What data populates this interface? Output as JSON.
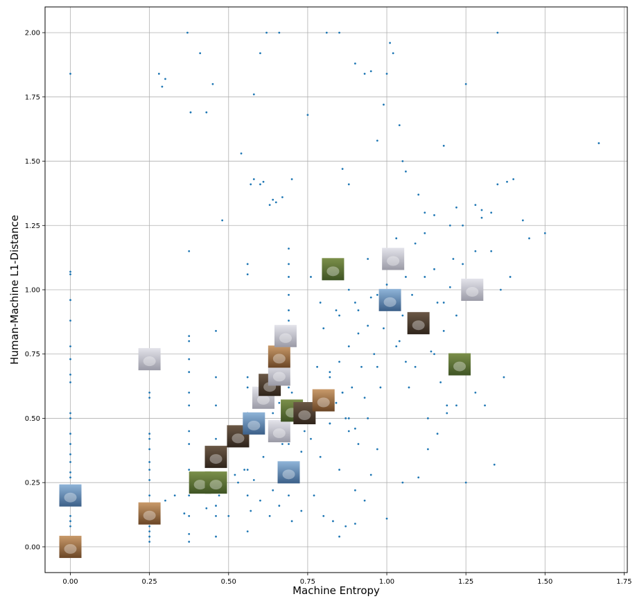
{
  "chart_data": {
    "type": "scatter",
    "title": "",
    "xlabel": "Machine Entropy",
    "ylabel": "Human-Machine L1-Distance",
    "xlim": [
      -0.08,
      1.76
    ],
    "ylim": [
      -0.1,
      2.1
    ],
    "grid": true,
    "point_color": "#1f77b4",
    "x_ticks": [
      0.0,
      0.25,
      0.5,
      0.75,
      1.0,
      1.25,
      1.5,
      1.75
    ],
    "x_tick_labels": [
      "0.00",
      "0.25",
      "0.50",
      "0.75",
      "1.00",
      "1.25",
      "1.50",
      "1.75"
    ],
    "y_ticks": [
      0.0,
      0.25,
      0.5,
      0.75,
      1.0,
      1.25,
      1.5,
      1.75,
      2.0
    ],
    "y_tick_labels": [
      "0.00",
      "0.25",
      "0.50",
      "0.75",
      "1.00",
      "1.25",
      "1.50",
      "1.75",
      "2.00"
    ],
    "sampled_points": {
      "x": [
        0.0,
        0.0,
        0.0,
        0.0,
        0.0,
        0.0,
        0.0,
        0.0,
        0.0,
        0.0,
        0.0,
        0.0,
        0.0,
        0.0,
        0.0,
        0.0,
        0.0,
        0.0,
        0.0,
        0.0,
        0.25,
        0.25,
        0.25,
        0.25,
        0.25,
        0.25,
        0.25,
        0.25,
        0.25,
        0.25,
        0.25,
        0.25,
        0.25,
        0.25,
        0.375,
        0.375,
        0.375,
        0.375,
        0.375,
        0.375,
        0.375,
        0.375,
        0.375,
        0.375,
        0.375,
        0.375,
        0.375,
        0.375,
        0.46,
        0.46,
        0.46,
        0.46,
        0.46,
        0.46,
        0.46,
        0.46,
        0.46,
        0.56,
        0.56,
        0.56,
        0.56,
        0.56,
        0.56,
        0.56,
        0.56,
        0.69,
        0.69,
        0.69,
        0.69,
        0.69,
        0.69,
        0.69,
        0.69,
        0.69,
        0.69,
        0.69,
        0.69,
        0.69,
        0.69,
        0.37,
        0.41,
        0.45,
        0.38,
        0.6,
        0.62,
        0.66,
        0.81,
        0.85,
        1.01,
        1.35,
        0.43,
        0.58,
        0.75,
        0.28,
        0.29,
        0.3,
        0.54,
        0.57,
        0.67,
        0.7,
        0.63,
        0.65,
        0.48,
        0.58,
        0.6,
        0.61,
        0.64,
        0.86,
        0.88,
        0.9,
        0.93,
        0.95,
        0.97,
        0.99,
        1.0,
        1.02,
        1.04,
        1.05,
        1.06,
        1.1,
        1.12,
        1.15,
        1.18,
        1.2,
        1.22,
        1.25,
        1.28,
        1.3,
        1.33,
        1.35,
        1.38,
        1.4,
        1.43,
        1.45,
        1.5,
        1.67,
        0.78,
        0.8,
        0.82,
        0.84,
        0.86,
        0.88,
        0.9,
        0.92,
        0.94,
        0.96,
        0.98,
        1.0,
        1.02,
        1.04,
        1.06,
        1.08,
        1.1,
        1.12,
        1.14,
        1.16,
        1.18,
        1.2,
        1.22,
        1.24,
        1.26,
        1.28,
        0.8,
        0.83,
        0.85,
        0.87,
        0.89,
        0.91,
        0.93,
        0.95,
        0.97,
        0.99,
        1.01,
        1.03,
        1.05,
        1.07,
        1.09,
        1.11,
        1.13,
        1.15,
        1.17,
        1.19,
        0.76,
        0.79,
        0.82,
        0.85,
        0.88,
        0.91,
        0.94,
        0.97,
        1.0,
        1.03,
        1.06,
        1.09,
        1.12,
        1.15,
        1.18,
        1.21,
        1.24,
        1.27,
        1.3,
        1.33,
        1.36,
        1.39,
        0.6,
        0.62,
        0.64,
        0.66,
        0.68,
        0.7,
        0.72,
        0.74,
        0.76,
        0.78,
        0.8,
        0.82,
        0.84,
        0.86,
        0.88,
        0.9,
        0.52,
        0.55,
        0.58,
        0.61,
        0.64,
        0.67,
        0.7,
        0.73,
        0.76,
        0.79,
        0.82,
        0.85,
        0.88,
        0.91,
        0.94,
        0.97,
        0.3,
        0.33,
        0.36,
        0.4,
        0.43,
        0.47,
        0.5,
        0.53,
        0.57,
        0.6,
        0.63,
        0.66,
        0.7,
        0.73,
        0.77,
        0.8,
        0.83,
        0.87,
        0.9,
        0.93,
        1.1,
        1.13,
        1.16,
        1.19,
        1.22,
        1.25,
        1.28,
        1.31,
        1.34,
        1.37,
        1.0,
        1.05,
        0.95,
        0.9,
        0.85
      ],
      "y": [
        1.84,
        1.07,
        1.06,
        0.96,
        0.88,
        0.78,
        0.73,
        0.67,
        0.64,
        0.52,
        0.5,
        0.44,
        0.4,
        0.36,
        0.33,
        0.29,
        0.27,
        0.12,
        0.1,
        0.08,
        0.6,
        0.58,
        0.44,
        0.42,
        0.38,
        0.33,
        0.3,
        0.26,
        0.2,
        0.12,
        0.08,
        0.06,
        0.04,
        0.02,
        1.15,
        0.82,
        0.8,
        0.73,
        0.68,
        0.6,
        0.55,
        0.45,
        0.4,
        0.3,
        0.2,
        0.12,
        0.05,
        0.02,
        0.84,
        0.66,
        0.55,
        0.42,
        0.37,
        0.25,
        0.16,
        0.12,
        0.04,
        1.1,
        1.06,
        0.66,
        0.62,
        0.52,
        0.3,
        0.2,
        0.06,
        1.16,
        1.1,
        1.05,
        0.98,
        0.92,
        0.88,
        0.82,
        0.78,
        0.7,
        0.62,
        0.52,
        0.4,
        0.3,
        0.2,
        2.0,
        1.92,
        1.8,
        1.69,
        1.92,
        2.0,
        2.0,
        2.0,
        2.0,
        1.96,
        2.0,
        1.69,
        1.76,
        1.68,
        1.84,
        1.79,
        1.82,
        1.53,
        1.41,
        1.36,
        1.43,
        1.33,
        1.34,
        1.27,
        1.43,
        1.41,
        1.42,
        1.35,
        1.47,
        1.41,
        1.88,
        1.84,
        1.85,
        1.58,
        1.72,
        1.84,
        1.92,
        1.64,
        1.5,
        1.46,
        1.37,
        1.3,
        1.29,
        1.56,
        1.25,
        1.32,
        1.8,
        1.33,
        1.31,
        1.3,
        1.41,
        1.42,
        1.43,
        1.27,
        1.2,
        1.22,
        1.57,
        0.7,
        0.85,
        0.66,
        0.92,
        0.6,
        0.78,
        0.95,
        0.7,
        0.86,
        0.75,
        0.62,
        1.02,
        0.93,
        0.8,
        0.72,
        0.98,
        0.88,
        1.05,
        0.76,
        0.95,
        0.84,
        1.01,
        0.9,
        1.1,
        0.72,
        1.15,
        0.55,
        0.6,
        0.72,
        0.5,
        0.62,
        0.83,
        0.58,
        0.97,
        0.7,
        0.85,
        0.95,
        0.78,
        0.9,
        0.62,
        0.7,
        0.88,
        0.5,
        0.75,
        0.64,
        0.55,
        1.05,
        0.95,
        0.68,
        0.9,
        1.0,
        0.92,
        1.12,
        0.98,
        1.14,
        1.2,
        1.05,
        1.18,
        1.22,
        1.08,
        0.95,
        1.12,
        1.25,
        0.98,
        1.28,
        1.15,
        1.0,
        1.05,
        0.62,
        0.58,
        0.52,
        0.56,
        0.48,
        0.6,
        0.52,
        0.45,
        0.5,
        0.55,
        0.58,
        0.48,
        0.56,
        0.6,
        0.5,
        0.46,
        0.28,
        0.3,
        0.26,
        0.35,
        0.22,
        0.4,
        0.3,
        0.37,
        0.42,
        0.35,
        0.48,
        0.3,
        0.45,
        0.4,
        0.5,
        0.38,
        0.18,
        0.2,
        0.13,
        0.22,
        0.15,
        0.2,
        0.12,
        0.25,
        0.14,
        0.18,
        0.12,
        0.16,
        0.1,
        0.14,
        0.2,
        0.12,
        0.1,
        0.08,
        0.22,
        0.18,
        0.27,
        0.38,
        0.44,
        0.52,
        0.55,
        0.25,
        0.6,
        0.55,
        0.32,
        0.66,
        0.11,
        0.25,
        0.28,
        0.09,
        0.04
      ]
    },
    "legend": null
  }
}
